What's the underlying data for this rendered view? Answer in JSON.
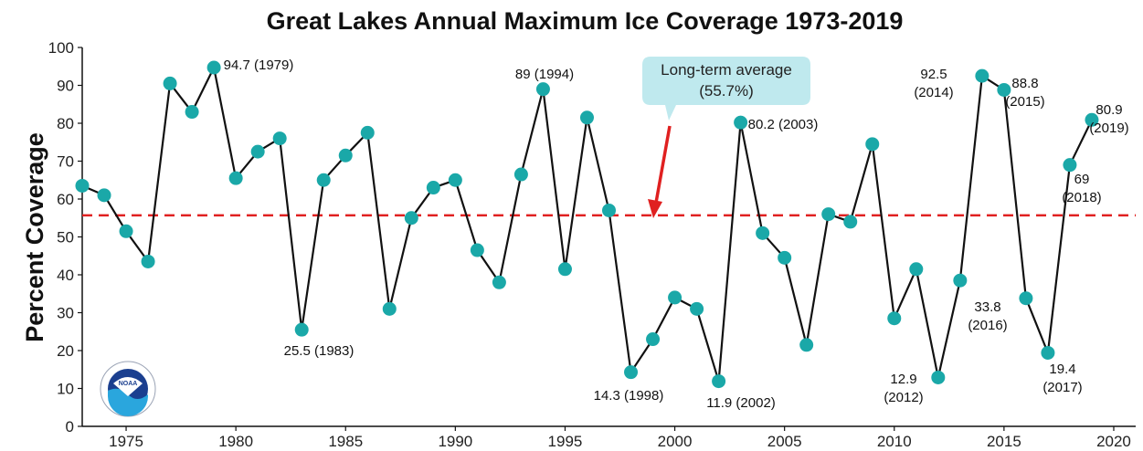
{
  "chart_data": {
    "type": "line",
    "title": "Great Lakes Annual Maximum Ice Coverage 1973-2019",
    "ylabel": "Percent Coverage",
    "xlabel": "",
    "xlim": [
      1973,
      2021
    ],
    "ylim": [
      0,
      100
    ],
    "x_ticks": [
      1975,
      1980,
      1985,
      1990,
      1995,
      2000,
      2005,
      2010,
      2015,
      2020
    ],
    "y_ticks": [
      0,
      10,
      20,
      30,
      40,
      50,
      60,
      70,
      80,
      90,
      100
    ],
    "grid": false,
    "line_color": "#111111",
    "marker_color": "#1aa8a8",
    "average_line_color": "#e02020",
    "series": [
      {
        "x": [
          1973,
          1974,
          1975,
          1976,
          1977,
          1978,
          1979,
          1980,
          1981,
          1982,
          1983,
          1984,
          1985,
          1986,
          1987,
          1988,
          1989,
          1990,
          1991,
          1992,
          1993,
          1994,
          1995,
          1996,
          1997,
          1998,
          1999,
          2000,
          2001,
          2002,
          2003,
          2004,
          2005,
          2006,
          2007,
          2008,
          2009,
          2010,
          2011,
          2012,
          2013,
          2014,
          2015,
          2016,
          2017,
          2018,
          2019
        ],
        "values": [
          63.5,
          61,
          51.5,
          43.5,
          90.5,
          83,
          94.7,
          65.5,
          72.5,
          76,
          25.5,
          65,
          71.5,
          77.5,
          31,
          55,
          63,
          65,
          46.5,
          38,
          66.5,
          89,
          41.5,
          81.5,
          57,
          14.3,
          23,
          34,
          31,
          11.9,
          80.2,
          51,
          44.5,
          21.5,
          56,
          54,
          74.5,
          28.5,
          41.5,
          12.9,
          38.5,
          92.5,
          88.8,
          33.8,
          19.4,
          69,
          80.9
        ]
      }
    ],
    "average": {
      "value": 55.7,
      "label_line1": "Long-term average",
      "label_line2": "(55.7%)"
    },
    "annotations": [
      {
        "lines": [
          "94.7 (1979)"
        ]
      },
      {
        "lines": [
          "25.5 (1983)"
        ]
      },
      {
        "lines": [
          "89 (1994)"
        ]
      },
      {
        "lines": [
          "14.3 (1998)"
        ]
      },
      {
        "lines": [
          "11.9 (2002)"
        ]
      },
      {
        "lines": [
          "80.2 (2003)"
        ]
      },
      {
        "lines": [
          "12.9",
          "(2012)"
        ]
      },
      {
        "lines": [
          "92.5",
          "(2014)"
        ]
      },
      {
        "lines": [
          "88.8",
          "(2015)"
        ]
      },
      {
        "lines": [
          "33.8",
          "(2016)"
        ]
      },
      {
        "lines": [
          "19.4",
          "(2017)"
        ]
      },
      {
        "lines": [
          "69",
          "(2018)"
        ]
      },
      {
        "lines": [
          "80.9",
          "(2019)"
        ]
      }
    ],
    "logo": {
      "text": "NOAA",
      "ring_text": "NATIONAL OCEANIC AND ATMOSPHERIC ADMINISTRATION · U.S. DEPARTMENT OF COMMERCE"
    }
  }
}
